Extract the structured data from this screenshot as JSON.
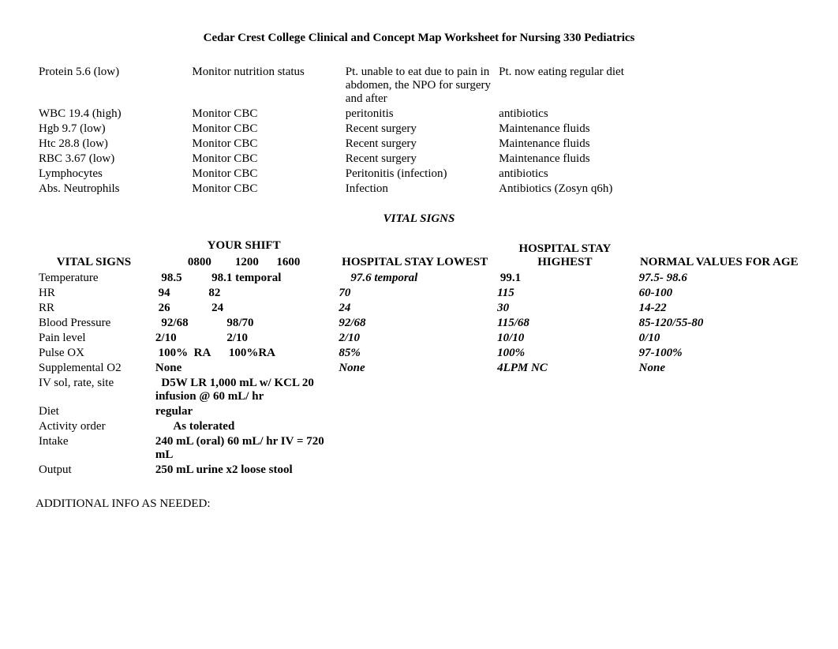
{
  "title": "Cedar Crest College Clinical and Concept Map Worksheet for Nursing 330 Pediatrics",
  "lab_rows": [
    {
      "c1": "Protein 5.6 (low)",
      "c2": "Monitor nutrition status",
      "c3": "Pt. unable to eat due to pain in abdomen, the NPO for surgery and after",
      "c4": "Pt. now eating regular diet",
      "c5": ""
    },
    {
      "c1": "WBC 19.4 (high)",
      "c2": "Monitor CBC",
      "c3": "peritonitis",
      "c4": "antibiotics",
      "c5": ""
    },
    {
      "c1": "Hgb 9.7 (low)",
      "c2": "Monitor CBC",
      "c3": "Recent surgery",
      "c4": "Maintenance fluids",
      "c5": ""
    },
    {
      "c1": "Htc 28.8 (low)",
      "c2": "Monitor CBC",
      "c3": "Recent surgery",
      "c4": "Maintenance fluids",
      "c5": ""
    },
    {
      "c1": "RBC 3.67 (low)",
      "c2": "Monitor CBC",
      "c3": "Recent surgery",
      "c4": "Maintenance fluids",
      "c5": ""
    },
    {
      "c1": "Lymphocytes",
      "c2": "Monitor CBC",
      "c3": "Peritonitis (infection)",
      "c4": "antibiotics",
      "c5": ""
    },
    {
      "c1": "Abs. Neutrophils",
      "c2": "Monitor CBC",
      "c3": "Infection",
      "c4": "Antibiotics (Zosyn q6h)",
      "c5": ""
    }
  ],
  "vital_signs_section": "VITAL SIGNS",
  "vitals_header": {
    "col1": "VITAL SIGNS",
    "col2_top": "YOUR SHIFT",
    "col2_times": "0800        1200      1600",
    "col3": "HOSPITAL STAY LOWEST",
    "col4": "HOSPITAL STAY HIGHEST",
    "col5": "NORMAL VALUES FOR AGE"
  },
  "vitals_rows": [
    {
      "label": "Temperature",
      "shift": "  98.5          98.1 temporal",
      "low": "    97.6 temporal",
      "high": " 99.1",
      "normal": "97.5- 98.6",
      "low_italic": true,
      "high_italic": false,
      "normal_italic": true
    },
    {
      "label": "HR",
      "shift": " 94             82",
      "low": "70",
      "high": "115",
      "normal": "60-100",
      "low_italic": true,
      "high_italic": true,
      "normal_italic": true
    },
    {
      "label": "RR",
      "shift": " 26              24",
      "low": "24",
      "high": "30",
      "normal": "14-22",
      "low_italic": true,
      "high_italic": true,
      "normal_italic": true
    },
    {
      "label": "Blood Pressure",
      "shift": "  92/68             98/70",
      "low": "92/68",
      "high": "115/68",
      "normal": "85-120/55-80",
      "low_italic": true,
      "high_italic": true,
      "normal_italic": true
    },
    {
      "label": "Pain level",
      "shift": "2/10                 2/10",
      "low": "2/10",
      "high": "10/10",
      "normal": "0/10",
      "low_italic": true,
      "high_italic": true,
      "normal_italic": true
    },
    {
      "label": "Pulse OX",
      "shift": " 100%  RA      100%RA",
      "low": "85%",
      "high": "100%",
      "normal": "97-100%",
      "low_italic": true,
      "high_italic": true,
      "normal_italic": true
    },
    {
      "label": "Supplemental O2",
      "shift": "None",
      "low": "None",
      "high": "4LPM NC",
      "normal": "None",
      "low_italic": true,
      "high_italic": true,
      "normal_italic": true
    },
    {
      "label": "IV sol, rate, site",
      "shift": "  D5W LR 1,000 mL w/ KCL 20 infusion @ 60 mL/ hr",
      "low": "",
      "high": "",
      "normal": "",
      "low_italic": false,
      "high_italic": false,
      "normal_italic": false
    },
    {
      "label": "Diet",
      "shift": "regular",
      "low": "",
      "high": "",
      "normal": "",
      "low_italic": false,
      "high_italic": false,
      "normal_italic": false
    },
    {
      "label": "Activity order",
      "shift": "      As tolerated",
      "low": "",
      "high": "",
      "normal": "",
      "low_italic": false,
      "high_italic": false,
      "normal_italic": false
    },
    {
      "label": "Intake",
      "shift": "240 mL (oral) 60 mL/ hr IV = 720 mL",
      "low": "",
      "high": "",
      "normal": "",
      "low_italic": false,
      "high_italic": false,
      "normal_italic": false
    },
    {
      "label": "Output",
      "shift": "250 mL urine x2 loose stool",
      "low": "",
      "high": "",
      "normal": "",
      "low_italic": false,
      "high_italic": false,
      "normal_italic": false
    }
  ],
  "additional_info": "ADDITIONAL INFO AS NEEDED:"
}
